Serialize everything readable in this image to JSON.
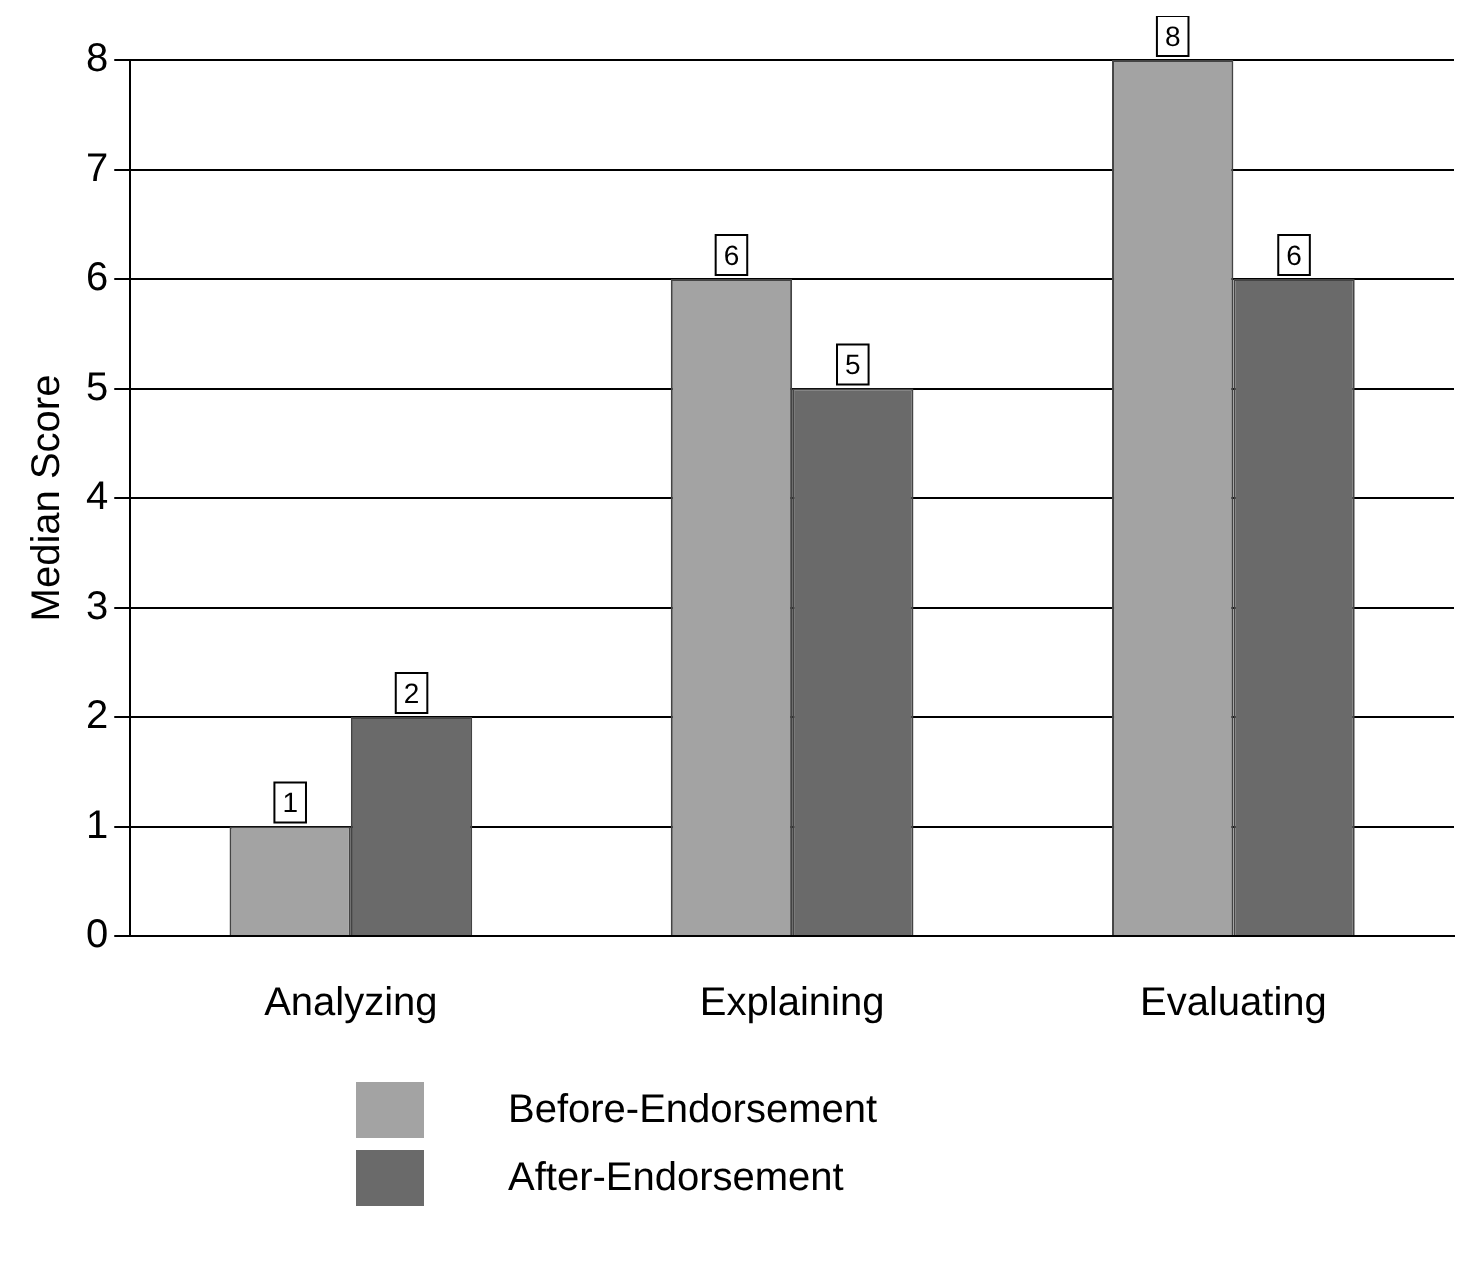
{
  "chart_data": {
    "type": "bar",
    "ylabel": "Median Score",
    "categories": [
      "Analyzing",
      "Explaining",
      "Evaluating"
    ],
    "series": [
      {
        "name": "Before-Endorsement",
        "color": "#a3a3a3",
        "values": [
          1,
          6,
          8
        ]
      },
      {
        "name": "After-Endorsement",
        "color": "#6a6a6a",
        "values": [
          2,
          5,
          6
        ]
      }
    ],
    "ylim": [
      0,
      8
    ],
    "yticks": [
      0,
      1,
      2,
      3,
      4,
      5,
      6,
      7,
      8
    ],
    "grid": "y",
    "legend": "bottom",
    "data_labels": true
  }
}
